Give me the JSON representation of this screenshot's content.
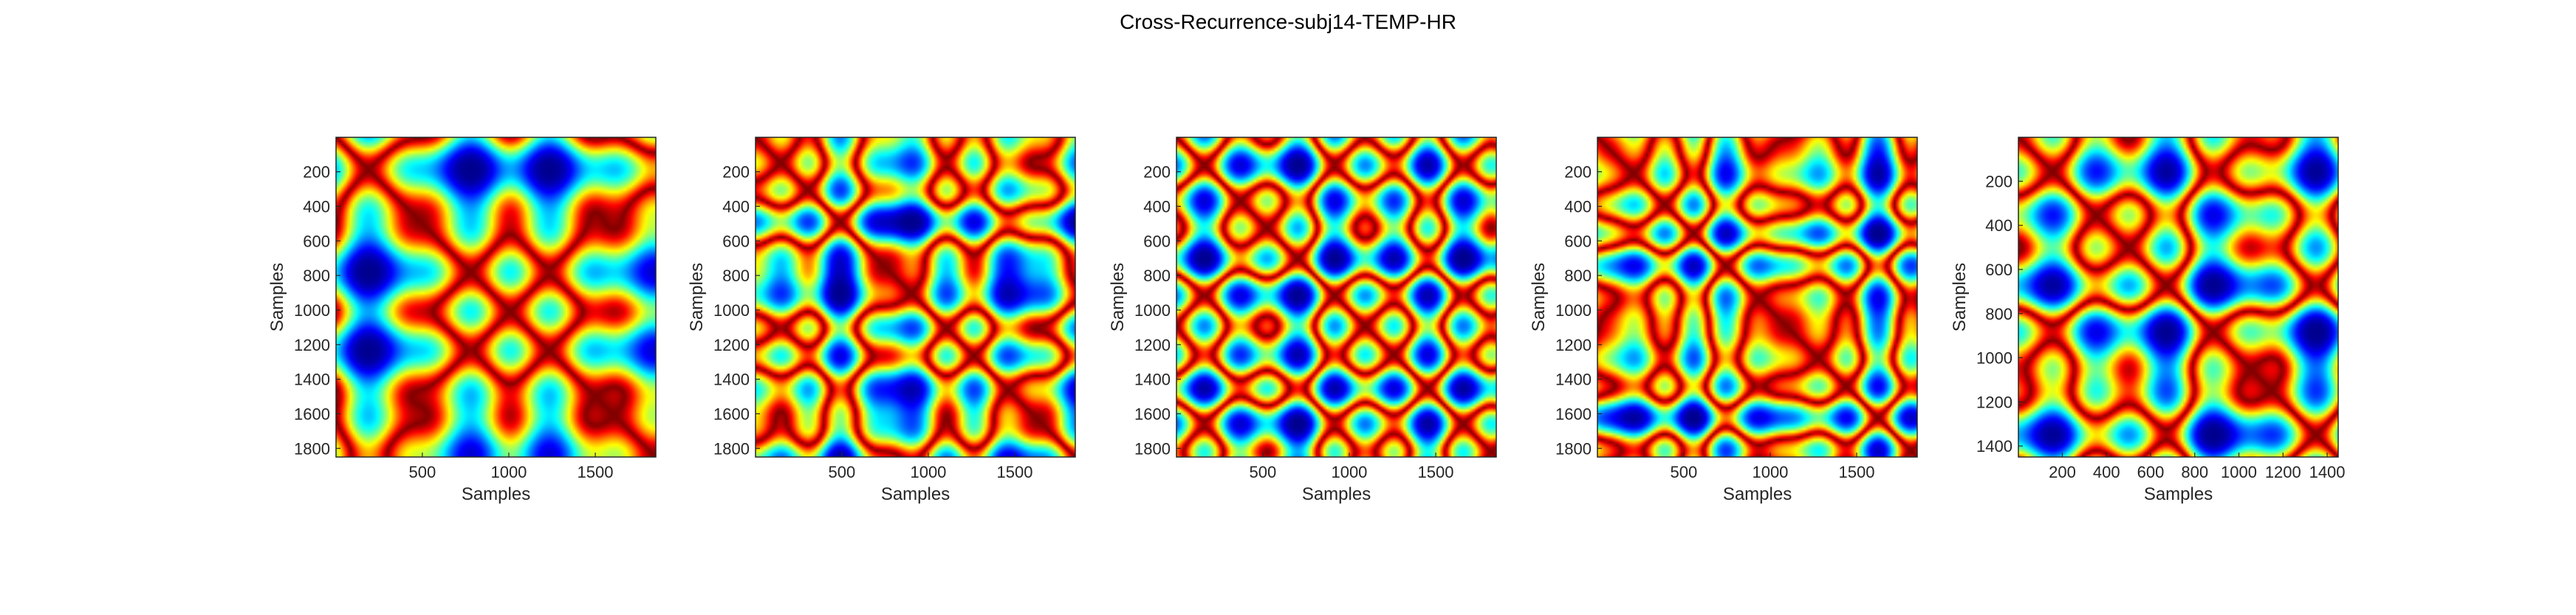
{
  "figure": {
    "title": "Cross-Recurrence-subj14-TEMP-HR"
  },
  "colormap": [
    "#00008f",
    "#0000ff",
    "#0080ff",
    "#00ffff",
    "#80ff80",
    "#ffff00",
    "#ff8000",
    "#ff0000",
    "#800000"
  ],
  "chart_data": [
    {
      "type": "heatmap",
      "title": "",
      "xlabel": "Samples",
      "ylabel": "Samples",
      "xlim": [
        1,
        1850
      ],
      "ylim": [
        1,
        1850
      ],
      "y_reversed": true,
      "xticks": [
        500,
        1000,
        1500
      ],
      "yticks": [
        200,
        400,
        600,
        800,
        1000,
        1200,
        1400,
        1600,
        1800
      ],
      "seed": 11
    },
    {
      "type": "heatmap",
      "title": "",
      "xlabel": "Samples",
      "ylabel": "Samples",
      "xlim": [
        1,
        1850
      ],
      "ylim": [
        1,
        1850
      ],
      "y_reversed": true,
      "xticks": [
        500,
        1000,
        1500
      ],
      "yticks": [
        200,
        400,
        600,
        800,
        1000,
        1200,
        1400,
        1600,
        1800
      ],
      "seed": 23
    },
    {
      "type": "heatmap",
      "title": "",
      "xlabel": "Samples",
      "ylabel": "Samples",
      "xlim": [
        1,
        1850
      ],
      "ylim": [
        1,
        1850
      ],
      "y_reversed": true,
      "xticks": [
        500,
        1000,
        1500
      ],
      "yticks": [
        200,
        400,
        600,
        800,
        1000,
        1200,
        1400,
        1600,
        1800
      ],
      "seed": 37
    },
    {
      "type": "heatmap",
      "title": "",
      "xlabel": "Samples",
      "ylabel": "Samples",
      "xlim": [
        1,
        1850
      ],
      "ylim": [
        1,
        1850
      ],
      "y_reversed": true,
      "xticks": [
        500,
        1000,
        1500
      ],
      "yticks": [
        200,
        400,
        600,
        800,
        1000,
        1200,
        1400,
        1600,
        1800
      ],
      "seed": 41
    },
    {
      "type": "heatmap",
      "title": "",
      "xlabel": "Samples",
      "ylabel": "Samples",
      "xlim": [
        1,
        1450
      ],
      "ylim": [
        1,
        1450
      ],
      "y_reversed": true,
      "xticks": [
        200,
        400,
        600,
        800,
        1000,
        1200,
        1400
      ],
      "yticks": [
        200,
        400,
        600,
        800,
        1000,
        1200,
        1400
      ],
      "seed": 53
    }
  ]
}
